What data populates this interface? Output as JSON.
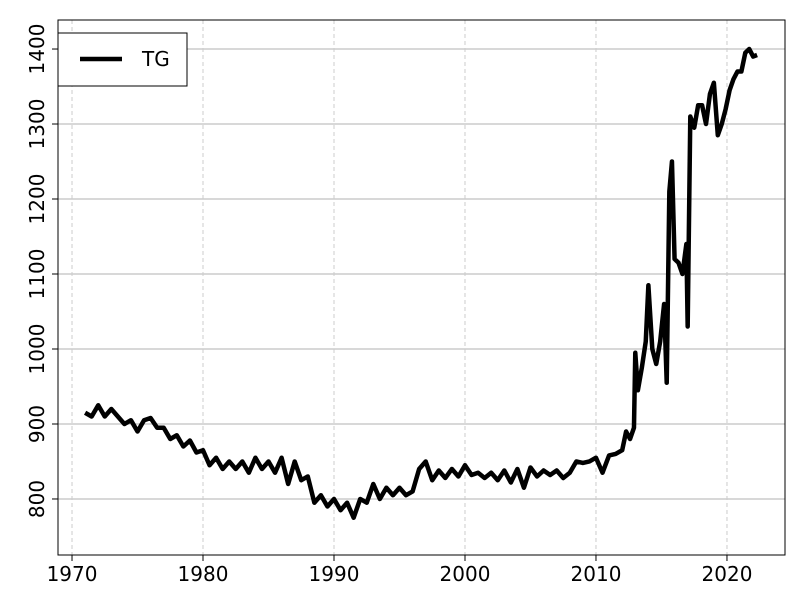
{
  "chart_data": {
    "type": "line",
    "x": [
      1971.0,
      1971.5,
      1972.0,
      1972.5,
      1973.0,
      1973.5,
      1974.0,
      1974.5,
      1975.0,
      1975.5,
      1976.0,
      1976.5,
      1977.0,
      1977.5,
      1978.0,
      1978.5,
      1979.0,
      1979.5,
      1980.0,
      1980.5,
      1981.0,
      1981.5,
      1982.0,
      1982.5,
      1983.0,
      1983.5,
      1984.0,
      1984.5,
      1985.0,
      1985.5,
      1986.0,
      1986.5,
      1987.0,
      1987.5,
      1988.0,
      1988.5,
      1989.0,
      1989.5,
      1990.0,
      1990.5,
      1991.0,
      1991.5,
      1992.0,
      1992.5,
      1993.0,
      1993.5,
      1994.0,
      1994.5,
      1995.0,
      1995.5,
      1996.0,
      1996.5,
      1997.0,
      1997.5,
      1998.0,
      1998.5,
      1999.0,
      1999.5,
      2000.0,
      2000.5,
      2001.0,
      2001.5,
      2002.0,
      2002.5,
      2003.0,
      2003.5,
      2004.0,
      2004.5,
      2005.0,
      2005.5,
      2006.0,
      2006.5,
      2007.0,
      2007.5,
      2008.0,
      2008.5,
      2009.0,
      2009.5,
      2010.0,
      2010.5,
      2011.0,
      2011.5,
      2012.0,
      2012.3,
      2012.6,
      2012.9,
      2013.0,
      2013.2,
      2013.5,
      2013.8,
      2014.0,
      2014.3,
      2014.6,
      2014.9,
      2015.2,
      2015.4,
      2015.6,
      2015.8,
      2016.0,
      2016.3,
      2016.6,
      2016.9,
      2017.0,
      2017.2,
      2017.5,
      2017.8,
      2018.1,
      2018.4,
      2018.7,
      2019.0,
      2019.3,
      2019.6,
      2019.9,
      2020.2,
      2020.5,
      2020.8,
      2021.1,
      2021.4,
      2021.7,
      2022.0,
      2022.3
    ],
    "series": [
      {
        "name": "TG",
        "color": "#000000",
        "values": [
          915,
          910,
          925,
          910,
          920,
          910,
          900,
          905,
          890,
          905,
          908,
          895,
          895,
          880,
          885,
          870,
          878,
          862,
          865,
          845,
          855,
          840,
          850,
          840,
          850,
          835,
          855,
          840,
          850,
          835,
          855,
          820,
          850,
          825,
          830,
          795,
          805,
          790,
          800,
          785,
          795,
          775,
          800,
          795,
          820,
          800,
          815,
          805,
          815,
          805,
          810,
          840,
          850,
          825,
          838,
          828,
          840,
          830,
          845,
          832,
          835,
          828,
          835,
          825,
          838,
          822,
          840,
          815,
          842,
          830,
          838,
          832,
          838,
          828,
          835,
          850,
          848,
          850,
          855,
          835,
          858,
          860,
          865,
          890,
          880,
          895,
          995,
          945,
          975,
          1010,
          1085,
          1000,
          980,
          1010,
          1060,
          955,
          1210,
          1250,
          1120,
          1115,
          1100,
          1140,
          1030,
          1310,
          1295,
          1325,
          1325,
          1300,
          1340,
          1355,
          1285,
          1300,
          1320,
          1345,
          1360,
          1370,
          1370,
          1395,
          1400,
          1390,
          1392
        ]
      }
    ],
    "xlim": [
      1968.93,
      2024.43
    ],
    "ylim": [
      725.3,
      1438.7
    ],
    "xticks": [
      1970,
      1980,
      1990,
      2000,
      2010,
      2020
    ],
    "yticks": [
      800,
      900,
      1000,
      1100,
      1200,
      1300,
      1400
    ],
    "grid": true,
    "legend": "top-left"
  }
}
